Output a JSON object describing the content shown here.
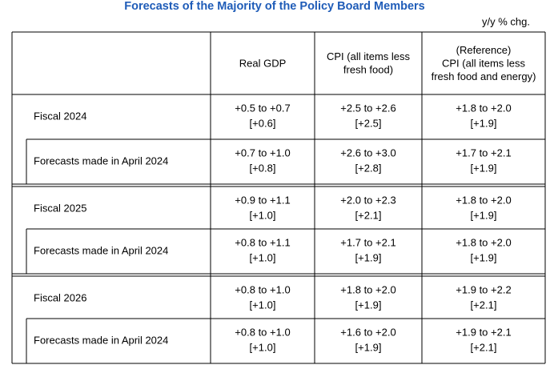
{
  "title": "Forecasts of the Majority of the Policy Board Members",
  "unit": "y/y % chg.",
  "table": {
    "header": [
      [
        "Real GDP"
      ],
      [
        "CPI (all items less",
        "fresh food)"
      ],
      [
        "(Reference)",
        "CPI (all items less",
        "fresh food and energy)"
      ]
    ],
    "rows": [
      {
        "label": "Fiscal 2024",
        "cells": [
          [
            "+0.5 to +0.7",
            "[+0.6]"
          ],
          [
            "+2.5 to +2.6",
            "[+2.5]"
          ],
          [
            "+1.8 to +2.0",
            "[+1.9]"
          ]
        ]
      },
      {
        "label": "Forecasts made in April 2024",
        "cells": [
          [
            "+0.7 to +1.0",
            "[+0.8]"
          ],
          [
            "+2.6 to +3.0",
            "[+2.8]"
          ],
          [
            "+1.7 to +2.1",
            "[+1.9]"
          ]
        ]
      },
      {
        "label": "Fiscal 2025",
        "cells": [
          [
            "+0.9 to +1.1",
            "[+1.0]"
          ],
          [
            "+2.0 to +2.3",
            "[+2.1]"
          ],
          [
            "+1.8 to +2.0",
            "[+1.9]"
          ]
        ]
      },
      {
        "label": "Forecasts made in April 2024",
        "cells": [
          [
            "+0.8 to +1.1",
            "[+1.0]"
          ],
          [
            "+1.7 to +2.1",
            "[+1.9]"
          ],
          [
            "+1.8 to +2.0",
            "[+1.9]"
          ]
        ]
      },
      {
        "label": "Fiscal 2026",
        "cells": [
          [
            "+0.8 to +1.0",
            "[+1.0]"
          ],
          [
            "+1.8 to +2.0",
            "[+1.9]"
          ],
          [
            "+1.9 to +2.2",
            "[+2.1]"
          ]
        ]
      },
      {
        "label": "Forecasts made in April 2024",
        "cells": [
          [
            "+0.8 to +1.0",
            "[+1.0]"
          ],
          [
            "+1.6 to +2.0",
            "[+1.9]"
          ],
          [
            "+1.9 to +2.1",
            "[+2.1]"
          ]
        ]
      }
    ]
  }
}
